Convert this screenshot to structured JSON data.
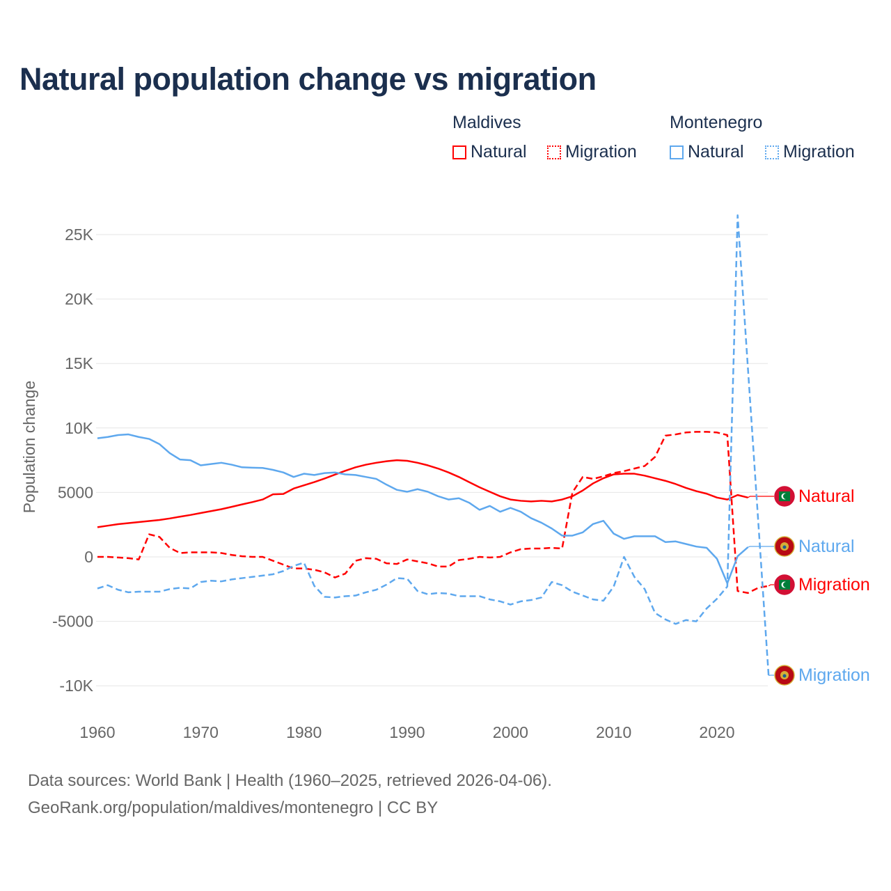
{
  "title": "Natural population change vs migration",
  "legend": {
    "groups": [
      {
        "name": "Maldives",
        "items": [
          "Natural",
          "Migration"
        ]
      },
      {
        "name": "Montenegro",
        "items": [
          "Natural",
          "Migration"
        ]
      }
    ]
  },
  "footer": {
    "line1": "Data sources: World Bank | Health (1960–2025, retrieved 2026-04-06).",
    "line2": "GeoRank.org/population/maldives/montenegro | CC BY"
  },
  "colors": {
    "maldives": "#ff0000",
    "montenegro": "#5ea8ee",
    "title": "#1b2f4e"
  },
  "chart_data": {
    "type": "line",
    "title": "Natural population change vs migration",
    "xlabel": "",
    "ylabel": "Population change",
    "xlim": [
      1960,
      2025
    ],
    "ylim": [
      -11000,
      27000
    ],
    "grid": true,
    "legend_placement": "top-right",
    "x_ticks": [
      "1960",
      "1970",
      "1980",
      "1990",
      "2000",
      "2010",
      "2020"
    ],
    "y_ticks": [
      {
        "v": 25000,
        "label": "25K"
      },
      {
        "v": 20000,
        "label": "20K"
      },
      {
        "v": 15000,
        "label": "15K"
      },
      {
        "v": 10000,
        "label": "10K"
      },
      {
        "v": 5000,
        "label": "5000"
      },
      {
        "v": 0,
        "label": "0"
      },
      {
        "v": -5000,
        "label": "-5000"
      },
      {
        "v": -10000,
        "label": "-10K"
      }
    ],
    "series": [
      {
        "name": "Maldives Natural",
        "country": "maldives",
        "dash": false,
        "end_label": "Natural",
        "start": 1960,
        "values": [
          2300,
          2420,
          2540,
          2620,
          2700,
          2780,
          2860,
          2980,
          3120,
          3250,
          3400,
          3550,
          3700,
          3880,
          4070,
          4250,
          4450,
          4850,
          4880,
          5300,
          5550,
          5800,
          6080,
          6380,
          6680,
          6950,
          7150,
          7300,
          7420,
          7500,
          7450,
          7300,
          7100,
          6850,
          6550,
          6200,
          5800,
          5400,
          5050,
          4700,
          4450,
          4350,
          4300,
          4350,
          4300,
          4450,
          4700,
          5150,
          5700,
          6100,
          6400,
          6450,
          6450,
          6300,
          6100,
          5900,
          5650,
          5350,
          5100,
          4900,
          4600,
          4450,
          4800,
          4600
        ]
      },
      {
        "name": "Maldives Migration",
        "country": "maldives",
        "dash": true,
        "end_label": "Migration",
        "start": 1960,
        "values": [
          0,
          0,
          -50,
          -100,
          -200,
          1750,
          1550,
          700,
          300,
          350,
          350,
          350,
          300,
          150,
          50,
          0,
          0,
          -300,
          -600,
          -900,
          -900,
          -1000,
          -1200,
          -1600,
          -1300,
          -300,
          -100,
          -150,
          -500,
          -550,
          -200,
          -350,
          -500,
          -750,
          -750,
          -250,
          -150,
          0,
          -50,
          0,
          350,
          600,
          650,
          650,
          700,
          650,
          5000,
          6200,
          6050,
          6250,
          6500,
          6650,
          6850,
          7050,
          7750,
          9400,
          9500,
          9650,
          9700,
          9700,
          9650,
          9450,
          -2650,
          -2800,
          -2400,
          -2250
        ]
      },
      {
        "name": "Montenegro Natural",
        "country": "montenegro",
        "dash": false,
        "end_label": "Natural",
        "start": 1960,
        "values": [
          9200,
          9300,
          9450,
          9500,
          9300,
          9150,
          8750,
          8050,
          7550,
          7500,
          7100,
          7200,
          7300,
          7150,
          6950,
          6920,
          6900,
          6750,
          6550,
          6200,
          6450,
          6350,
          6500,
          6550,
          6400,
          6350,
          6200,
          6050,
          5600,
          5200,
          5050,
          5250,
          5050,
          4700,
          4450,
          4550,
          4200,
          3650,
          3950,
          3500,
          3800,
          3500,
          3000,
          2650,
          2200,
          1650,
          1650,
          1900,
          2550,
          2800,
          1800,
          1400,
          1600,
          1600,
          1600,
          1150,
          1200,
          1000,
          800,
          700,
          -150,
          -2050,
          50,
          750
        ]
      },
      {
        "name": "Montenegro Migration",
        "country": "montenegro",
        "dash": true,
        "end_label": "Migration",
        "start": 1960,
        "values": [
          -2450,
          -2200,
          -2550,
          -2750,
          -2700,
          -2700,
          -2700,
          -2500,
          -2400,
          -2450,
          -1950,
          -1850,
          -1900,
          -1750,
          -1650,
          -1550,
          -1450,
          -1350,
          -1100,
          -700,
          -450,
          -2250,
          -3100,
          -3150,
          -3050,
          -3000,
          -2750,
          -2550,
          -2150,
          -1650,
          -1700,
          -2650,
          -2900,
          -2800,
          -2850,
          -3050,
          -3050,
          -3050,
          -3300,
          -3450,
          -3700,
          -3450,
          -3350,
          -3150,
          -1950,
          -2200,
          -2700,
          -3000,
          -3300,
          -3400,
          -2300,
          0,
          -1550,
          -2500,
          -4350,
          -4850,
          -5200,
          -4900,
          -5000,
          -4000,
          -3250,
          -2300,
          26500,
          14600,
          2700,
          -9200
        ]
      }
    ]
  }
}
